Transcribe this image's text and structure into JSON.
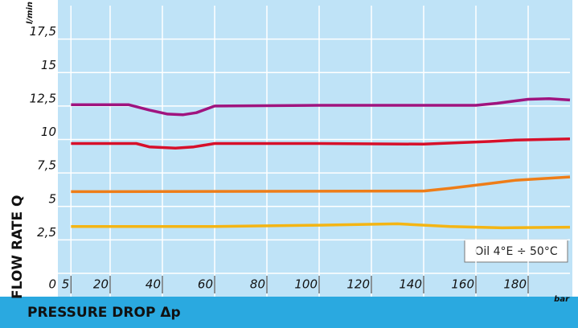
{
  "chart_data": {
    "type": "line",
    "y_label": "FLOW RATE Q",
    "x_label": "PRESSURE DROP Δp",
    "y_unit": "l/min",
    "x_unit": "bar",
    "annotation": "Oil 4°E ÷ 50°C",
    "xlim": [
      0,
      196
    ],
    "ylim": [
      0,
      20
    ],
    "xticks": [
      5,
      20,
      40,
      60,
      80,
      100,
      120,
      140,
      160,
      180
    ],
    "yticks": [
      0,
      {
        "value": 2.5,
        "label": "2,5"
      },
      5,
      {
        "value": 7.5,
        "label": "7,5"
      },
      10,
      {
        "value": 12.5,
        "label": "12,5"
      },
      15,
      {
        "value": 17.5,
        "label": "17,5"
      }
    ],
    "grid": true,
    "series": [
      {
        "color": "#a0147f",
        "x": [
          5,
          27,
          35,
          42,
          48,
          53,
          60,
          100,
          160,
          168,
          180,
          188,
          196
        ],
        "values": [
          12.6,
          12.6,
          12.2,
          11.9,
          11.85,
          12.0,
          12.5,
          12.55,
          12.55,
          12.7,
          13.0,
          13.05,
          12.95
        ]
      },
      {
        "color": "#d7102a",
        "x": [
          5,
          30,
          35,
          45,
          52,
          60,
          100,
          140,
          165,
          175,
          196
        ],
        "values": [
          9.7,
          9.7,
          9.45,
          9.35,
          9.45,
          9.7,
          9.7,
          9.65,
          9.85,
          9.95,
          10.05
        ]
      },
      {
        "color": "#ee7d18",
        "x": [
          5,
          140,
          150,
          165,
          175,
          196
        ],
        "values": [
          6.1,
          6.15,
          6.35,
          6.7,
          6.95,
          7.2
        ]
      },
      {
        "color": "#f4b514",
        "x": [
          5,
          60,
          100,
          130,
          150,
          170,
          196
        ],
        "values": [
          3.5,
          3.5,
          3.6,
          3.7,
          3.5,
          3.4,
          3.45
        ]
      }
    ]
  }
}
